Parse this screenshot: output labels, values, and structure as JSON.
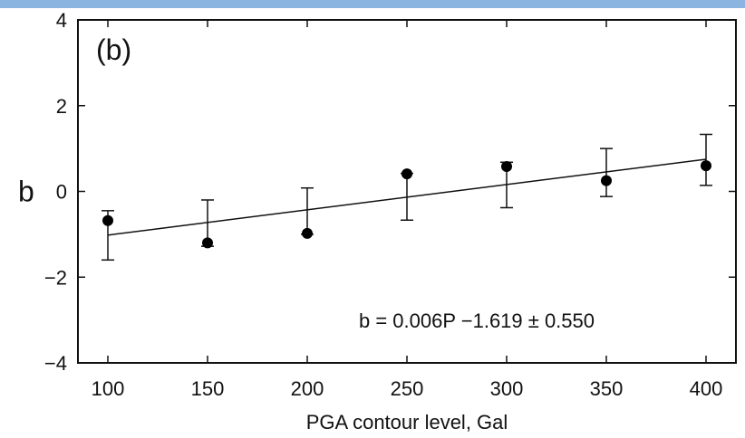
{
  "header_bar_color": "#8cb4e0",
  "chart_data": {
    "type": "scatter",
    "panel_label": "(b)",
    "xlabel": "PGA contour level, Gal",
    "ylabel": "b",
    "xlim": [
      85,
      415
    ],
    "ylim": [
      -4,
      4
    ],
    "x_ticks": [
      100,
      150,
      200,
      250,
      300,
      350,
      400
    ],
    "y_ticks": [
      4,
      2,
      0,
      -2,
      -4
    ],
    "y_tick_labels": [
      "4",
      "2",
      "0",
      "−2",
      "−4"
    ],
    "grid": false,
    "points": [
      {
        "x": 100,
        "y": -0.68,
        "err_low": -1.6,
        "err_high": -0.45
      },
      {
        "x": 150,
        "y": -1.2,
        "err_low": -1.28,
        "err_high": -0.2
      },
      {
        "x": 200,
        "y": -0.98,
        "err_low": -1.0,
        "err_high": 0.08
      },
      {
        "x": 250,
        "y": 0.41,
        "err_low": -0.67,
        "err_high": 0.42
      },
      {
        "x": 300,
        "y": 0.58,
        "err_low": -0.38,
        "err_high": 0.68
      },
      {
        "x": 350,
        "y": 0.25,
        "err_low": -0.12,
        "err_high": 1.0
      },
      {
        "x": 400,
        "y": 0.6,
        "err_low": 0.14,
        "err_high": 1.33
      }
    ],
    "fit_line": {
      "x": [
        100,
        400
      ],
      "y": [
        -1.02,
        0.75
      ]
    },
    "annotation": "b = 0.006P −1.619 ± 0.550",
    "colors": {
      "axis": "#111111",
      "marker": "#000000",
      "line": "#111111"
    }
  }
}
